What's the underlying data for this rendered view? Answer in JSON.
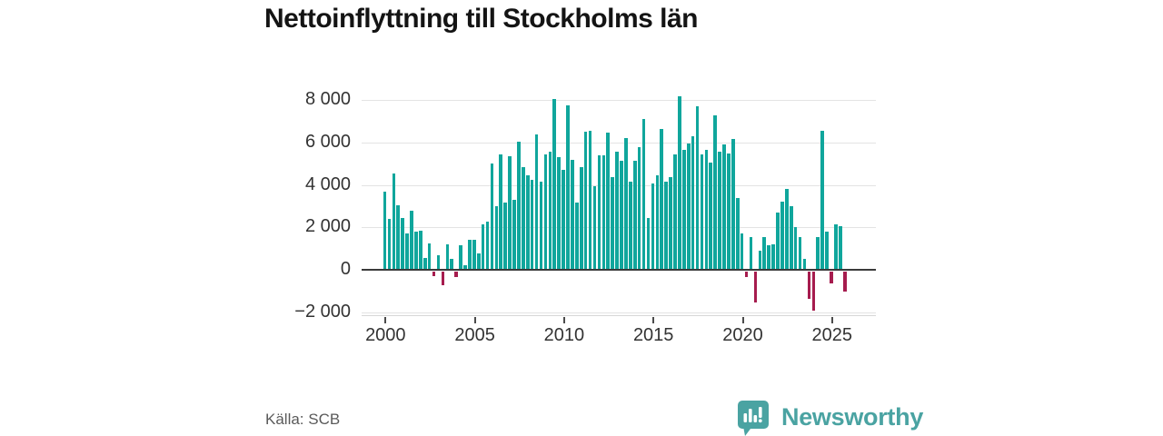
{
  "title": "Nettoinflyttning till Stockholms län",
  "source": "Källa: SCB",
  "branding": {
    "name": "Newsworthy",
    "logo_icon": "bar-chart-speech-bubble"
  },
  "colors": {
    "positive_bar": "#10a69c",
    "negative_bar": "#a61c4e",
    "zero_axis": "#3a3a3a",
    "gridline": "#e3e3e3",
    "axis_text": "#333333",
    "title_text": "#141414",
    "brand_teal": "#4aa3a2",
    "source_text": "#5a5a5a",
    "background": "#ffffff"
  },
  "chart_data": {
    "type": "bar",
    "title": "Nettoinflyttning till Stockholms län",
    "frequency": "quarterly",
    "start": "2000-Q1",
    "end": "2025-Q4",
    "ylim": [
      -2400,
      8600
    ],
    "grid": true,
    "y_ticks": [
      {
        "v": 8000,
        "label": "8 000"
      },
      {
        "v": 6000,
        "label": "6 000"
      },
      {
        "v": 4000,
        "label": "4 000"
      },
      {
        "v": 2000,
        "label": "2 000"
      },
      {
        "v": 0,
        "label": "0"
      },
      {
        "v": -2000,
        "label": "−2 000"
      }
    ],
    "x_ticks": [
      {
        "q": 0,
        "label": "2000"
      },
      {
        "q": 20,
        "label": "2005"
      },
      {
        "q": 40,
        "label": "2010"
      },
      {
        "q": 60,
        "label": "2015"
      },
      {
        "q": 80,
        "label": "2020"
      },
      {
        "q": 100,
        "label": "2025"
      }
    ],
    "values": [
      3700,
      2400,
      4550,
      3050,
      2450,
      1700,
      2770,
      1780,
      1850,
      550,
      1250,
      -200,
      700,
      -650,
      1200,
      500,
      -250,
      1150,
      200,
      1400,
      1400,
      750,
      2150,
      2250,
      5000,
      3000,
      5450,
      3150,
      5350,
      3300,
      6050,
      4850,
      4450,
      4250,
      6400,
      4150,
      5450,
      5550,
      8050,
      5300,
      4700,
      7750,
      5200,
      3150,
      4850,
      6500,
      6550,
      3950,
      5400,
      5400,
      6450,
      4350,
      5550,
      5150,
      6200,
      4150,
      5150,
      5800,
      7100,
      2450,
      4050,
      4450,
      6650,
      4150,
      4350,
      5450,
      8200,
      5650,
      5950,
      6300,
      7700,
      5450,
      5650,
      5050,
      7300,
      5550,
      5900,
      5500,
      6150,
      3400,
      1700,
      -250,
      1550,
      -1450,
      900,
      1550,
      1150,
      1200,
      2700,
      3200,
      3800,
      3000,
      2000,
      1550,
      500,
      -1300,
      -1850,
      1550,
      6550,
      1800,
      -550,
      2150,
      2050,
      -950
    ]
  }
}
